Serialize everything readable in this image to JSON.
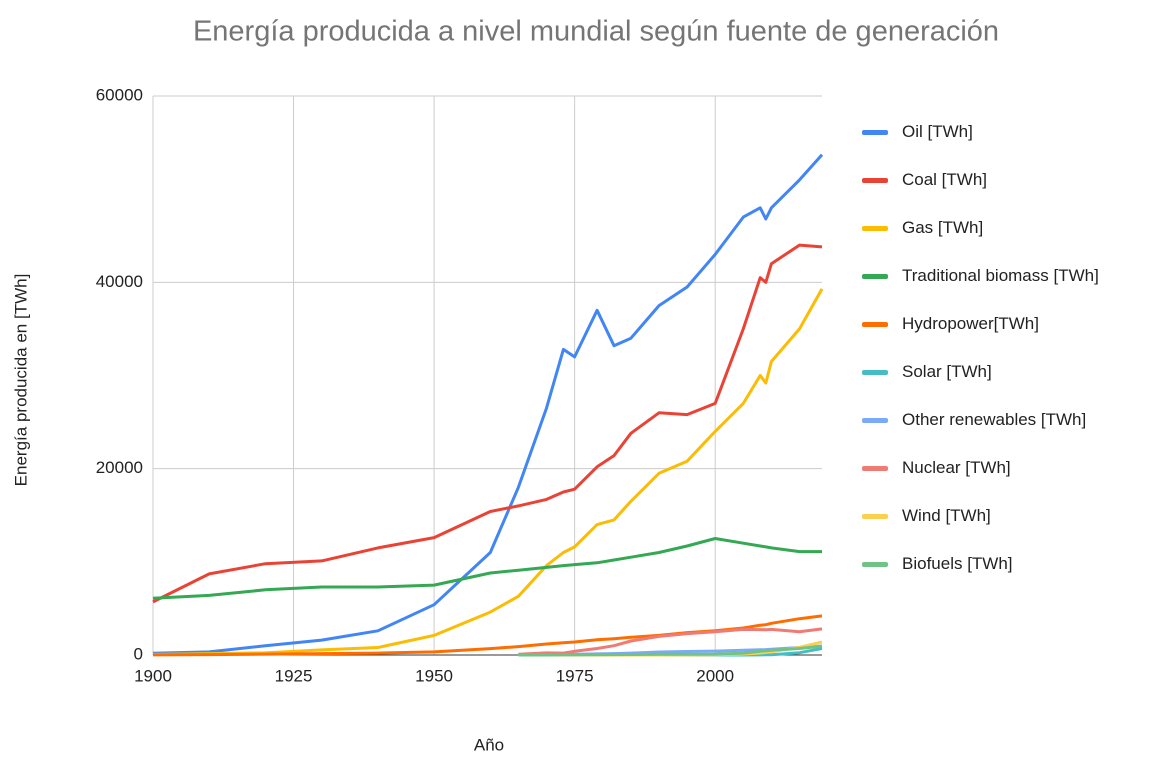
{
  "chart_data": {
    "type": "line",
    "title": "Energía producida a nivel mundial según fuente de generación",
    "x_label": "Año",
    "y_label": "Energía producida en [TWh]",
    "x": [
      1900,
      1910,
      1920,
      1930,
      1940,
      1950,
      1960,
      1965,
      1970,
      1973,
      1975,
      1979,
      1982,
      1985,
      1990,
      1995,
      2000,
      2005,
      2008,
      2009,
      2010,
      2015,
      2019
    ],
    "xlim": [
      1900,
      2019
    ],
    "xticks": [
      1900,
      1925,
      1950,
      1975,
      2000
    ],
    "ylim": [
      0,
      60000
    ],
    "yticks": [
      0,
      20000,
      40000,
      60000
    ],
    "grid": true,
    "legend": "right",
    "series": [
      {
        "name": "Oil [TWh]",
        "color": "#4285f4",
        "values": [
          180,
          330,
          1000,
          1600,
          2600,
          5400,
          11000,
          18000,
          26500,
          32800,
          32000,
          37000,
          33200,
          34000,
          37500,
          39500,
          43000,
          47000,
          48000,
          46800,
          48000,
          51000,
          53700
        ]
      },
      {
        "name": "Coal [TWh]",
        "color": "#ea4335",
        "values": [
          5700,
          8700,
          9800,
          10100,
          11500,
          12600,
          15400,
          16000,
          16700,
          17500,
          17800,
          20200,
          21400,
          23800,
          26000,
          25800,
          27000,
          35000,
          40500,
          40000,
          42000,
          44000,
          43800
        ]
      },
      {
        "name": "Gas [TWh]",
        "color": "#fbbc04",
        "values": [
          60,
          150,
          230,
          550,
          800,
          2100,
          4600,
          6300,
          9600,
          11000,
          11600,
          14000,
          14500,
          16500,
          19500,
          20800,
          24000,
          27000,
          30000,
          29200,
          31500,
          35000,
          39300
        ]
      },
      {
        "name": "Traditional biomass [TWh]",
        "color": "#34a853",
        "values": [
          6100,
          6400,
          7000,
          7300,
          7300,
          7500,
          8800,
          9100,
          9400,
          9600,
          9700,
          9900,
          10200,
          10500,
          11000,
          11700,
          12500,
          12000,
          11700,
          11600,
          11500,
          11100,
          11100
        ]
      },
      {
        "name": "Hydropower[TWh]",
        "color": "#ff6d01",
        "values": [
          10,
          40,
          100,
          150,
          200,
          330,
          690,
          900,
          1180,
          1320,
          1400,
          1630,
          1750,
          1900,
          2100,
          2400,
          2600,
          2900,
          3200,
          3250,
          3400,
          3900,
          4200
        ]
      },
      {
        "name": "Solar [TWh]",
        "color": "#46bdc6",
        "values": [
          null,
          null,
          null,
          null,
          null,
          null,
          null,
          0,
          0,
          0,
          0,
          0,
          0,
          0,
          0,
          0,
          1,
          4,
          12,
          20,
          30,
          250,
          700
        ]
      },
      {
        "name": "Other renewables [TWh]",
        "color": "#7baaf7",
        "values": [
          null,
          null,
          null,
          null,
          null,
          null,
          null,
          50,
          60,
          80,
          90,
          120,
          150,
          200,
          320,
          380,
          420,
          500,
          560,
          580,
          620,
          800,
          950
        ]
      },
      {
        "name": "Nuclear [TWh]",
        "color": "#f07b72",
        "values": [
          null,
          null,
          null,
          null,
          null,
          null,
          null,
          70,
          230,
          200,
          400,
          700,
          1000,
          1500,
          2000,
          2300,
          2500,
          2750,
          2730,
          2700,
          2750,
          2500,
          2800
        ]
      },
      {
        "name": "Wind [TWh]",
        "color": "#fcd04f",
        "values": [
          null,
          null,
          null,
          null,
          null,
          null,
          null,
          0,
          0,
          0,
          0,
          0,
          0,
          1,
          4,
          8,
          30,
          100,
          220,
          280,
          340,
          830,
          1400
        ]
      },
      {
        "name": "Biofuels [TWh]",
        "color": "#71c287",
        "values": [
          null,
          null,
          null,
          null,
          null,
          null,
          null,
          0,
          5,
          10,
          15,
          25,
          40,
          55,
          70,
          90,
          100,
          200,
          400,
          450,
          500,
          700,
          950
        ]
      }
    ]
  }
}
